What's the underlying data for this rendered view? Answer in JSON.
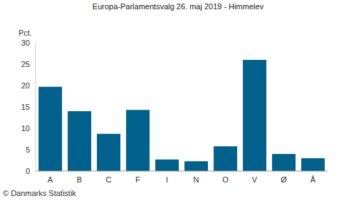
{
  "chart_data": {
    "type": "bar",
    "title": "Europa-Parlamentsvalg 26. maj 2019 - Himmelev",
    "ylabel": "Pct.",
    "annotations": [
      "© Danmarks Statistik"
    ],
    "categories": [
      "A",
      "B",
      "C",
      "F",
      "I",
      "N",
      "O",
      "V",
      "Ø",
      "Å"
    ],
    "values": [
      19.7,
      14.0,
      8.7,
      14.3,
      2.7,
      2.3,
      5.8,
      26.0,
      4.0,
      3.0
    ],
    "color": "#00618c",
    "ylim": [
      0,
      30
    ],
    "yticks": [
      0,
      5,
      10,
      15,
      20,
      25,
      30
    ],
    "grid": false
  }
}
